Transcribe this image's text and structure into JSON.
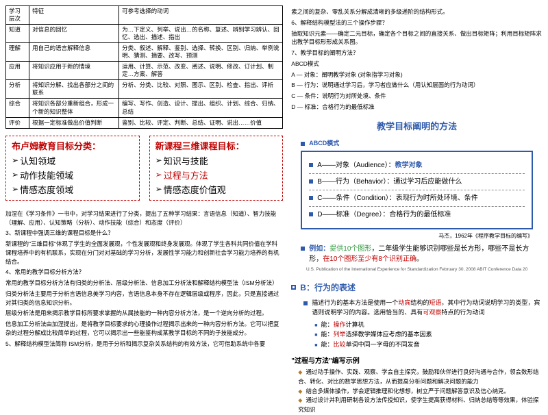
{
  "table": {
    "headers": [
      "学习层次",
      "特征",
      "可参考选择的动词"
    ],
    "rows": [
      [
        "知道",
        "对信息的回忆",
        "为…下定义、列举、说出…的名称、复述、辨别学习辨认、回忆、选出、描述、指出"
      ],
      [
        "理解",
        "用自己的语言解释信息",
        "分类、叙述、解释、鉴别、选择、转换、区别、归纳、举例说明、猜测、摘要、改写、预测"
      ],
      [
        "应用",
        "将知识应用于新的情境",
        "运用、计算、示范、改变、阐述、说明、修改、订计划、制定…方案、解答"
      ],
      [
        "分析",
        "将知识分解、找出各部分之间的联系",
        "分析、分类、比较、对照、图示、区别、检查、指出、评析"
      ],
      [
        "综合",
        "将知识各部分重新组合，形成一个新的知识整体",
        "编写、写作、创造、设计、提出、组织、计划、综合、归纳、总结"
      ],
      [
        "评价",
        "根据一定标准做出价值判断",
        "鉴别、比较、评定、判断、总结、证明、说出……价值"
      ]
    ]
  },
  "boxes": {
    "left": {
      "title": "布卢姆教育目标分类：",
      "items": [
        "认知领域",
        "动作技能领域",
        "情感态度领域"
      ],
      "redIndex": -1
    },
    "right": {
      "title": "新课程三维课程目标：",
      "items": [
        "知识与技能",
        "过程与方法",
        "情感态度价值观"
      ],
      "redIndex": 1
    }
  },
  "leftParas": [
    "加涅在《学习条件》一书中，对学习结果进行了分类，提出了五种学习结果：言语信息（知道）、智力技能（理解、应用）、认知策略（分析）、动作技能（综合）和态度（评价）",
    "3、新课程中强调三维的课程目标是什么？",
    "新课程的\"三维目标\"体现了学生的全面发展观，个性发展观和终身发展观。体现了学生各科共同价值在学科课程培养中的有机联系，实现在分门对对基础的学习分析，发展性学习能力和创新社会学习能力培养的有机结合。",
    "4、常用的教学目标分析方法？",
    "常用的教学目标分析方法有归类的分析法、层级分析法、信息加工分析法和解释结构模型法（ISM分析法）",
    "",
    "归类分析法主要用于分析言语信息美学习内容，言语信息本身不存在逻辑层级或程序，因此，只是直接通过对其归类的信息知识分析。",
    "层级分析法是用来揭示教学目标所要求掌握的从属技能的一种内容分析方法，是一个逆向分析的过程。",
    "",
    "信息加工分析法由加涅提出，是将教学目标要求的心理操作过程揭示出来的一种内容分析方法。它可以把复杂的过程分解成比较简单的过程，它可以揭示出一些能鉴构成某教学目标的不同的子技能成分。",
    "5、解释结构模型法简称 ISM分析，是用于分析和揭示复杂关系结构的有效方法，它可借助系统中各要"
  ],
  "rightParas": [
    "素之间的复杂、零乱关系分解成清晰的多级递阶的结构形式。",
    "6、解释结构模型法的三个操作步骤？",
    "抽取知识元素——确定二元目标，确定各个目标之间的直接关系、做出目标矩阵；利用目标矩阵求出教学目标形形成关系图。",
    "7、教学目标的阐明方法？",
    "ABCD模式",
    "A — 对象：阐明教学对象 (对象指学习对象)",
    "B — 行为：说明通过学习后，学习者应做什么（用认知层面的行为动词）",
    "C — 条件：说明行为对所处境、条件",
    "D — 标准：合格行为的最低标准"
  ],
  "abcdTitle": "教学目标阐明的方法",
  "abcdSub": "ABCD模式",
  "abcd": {
    "A": {
      "label": "A——对象（Audience）：",
      "val": "教学对象"
    },
    "B": {
      "label": "B——行为（Behavior）：通过学习后应能做什么"
    },
    "C": {
      "label": "C——条件（Condition）：表现行为时所处环境、条件"
    },
    "D": {
      "label": "D——标准（Degree）：合格行为的最低标准"
    }
  },
  "abcdCite": "马杰，1962年《程序教学目标的编写》",
  "example": {
    "lead": "例如：",
    "t1": "提供10个图形",
    "t2": "，二年级学生能够识别哪些是长方形，哪些不是长方形，",
    "t3": "在10个图形至少有8个识别正确",
    "t4": "。"
  },
  "pubNote": "U.S. Publication of the International Experience for Standardization\nFebruary 30, 2008   ABIT Conference                              Data 20",
  "behTitle": "B：行为的表述",
  "behPara1": "描述行为的基本方法是使用一个",
  "behParaRed": "动宾",
  "behPara1b": "结构的",
  "behParaRed2": "短语",
  "behPara1c": "，其中行为动词说明学习的类型，宾语则说明学习的内容。选用恰当的、具有",
  "behParaRed3": "可观察",
  "behPara1d": "特点的行为动词",
  "behBullets": [
    {
      "a": "能：",
      "b": "操作",
      "c": "计算机"
    },
    {
      "a": "能：",
      "b": "列举",
      "c": "选择教学媒体应考虑的基本因素"
    },
    {
      "a": "能：",
      "b": "比较",
      "c": "单词中同一字母的不同发音"
    }
  ],
  "procTitle": "\"过程与方法\"编写示例",
  "procItems": [
    "通过动手操作、实践、观察、学会自主探究，鼓励和伙伴进行良好沟通与合作，领会数形结合、转化、对比的数学思想方法，从而提高分析问题和解决问题的能力",
    "结合多媒体操作，学会逻辑推理和化想想，树立严于问题解答意识及信心纳克。",
    "通过设计并利用研制各设方法传授知识，使学生提高获得材料、归纳总结等等效果，体验探究知识"
  ]
}
